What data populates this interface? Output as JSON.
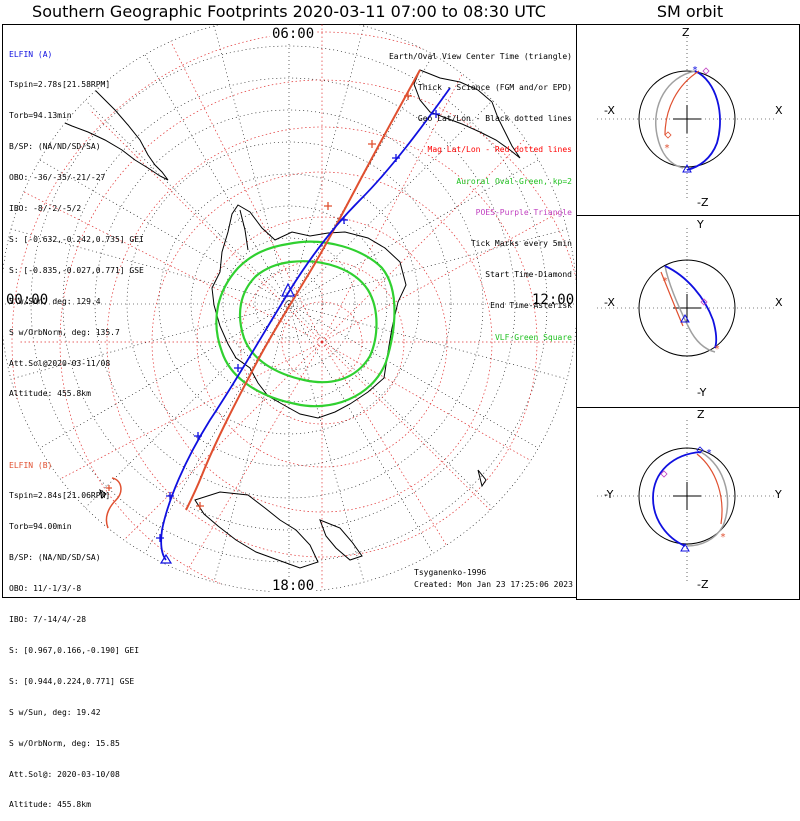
{
  "title": "Southern Geographic Footprints 2020-03-11 07:00 to 08:30 UTC",
  "orbit_title": "SM orbit",
  "hour_labels": {
    "top": "06:00",
    "left": "00:00",
    "right": "12:00",
    "bottom": "18:00"
  },
  "elfin_a": {
    "color": "#1010e0",
    "lines": [
      "ELFIN (A)",
      "Tspin=2.78s[21.58RPM]",
      "Torb=94.13min",
      "B/SP: (NA/ND/SD/SA)",
      "OBO: -36/-35/-21/-27",
      "IBO: -8/-2/-5/2",
      "S: [-0.632,-0.242,0.735] GEI",
      "S: [-0.835,-0.027,0.771] GSE",
      "S w/Sun, deg: 129.4",
      "S w/OrbNorm, deg: 135.7",
      "Att.Sol@2020-03-11/08",
      "Altitude: 455.8km"
    ]
  },
  "elfin_b": {
    "color": "#e05030",
    "lines": [
      "ELFIN (B)",
      "Tspin=2.84s[21.06RPM]",
      "Torb=94.00min",
      "B/SP: (NA/ND/SD/SA)",
      "OBO: 11/-1/3/-8",
      "IBO: 7/-14/4/-28",
      "S: [0.967,0.166,-0.190] GEI",
      "S: [0.944,0.224,0.771] GSE",
      "S w/Sun, deg: 19.42",
      "S w/OrbNorm, deg: 15.85",
      "Att.Sol@: 2020-03-10/08",
      "Altitude: 455.8km"
    ]
  },
  "legend": [
    {
      "text": "Earth/Oval View Center Time (triangle)",
      "color": "#000000"
    },
    {
      "text": "Thick - Science (FGM and/or EPD)",
      "color": "#000000"
    },
    {
      "text": "Geo Lat/Lon - Black dotted lines",
      "color": "#000000"
    },
    {
      "text": "Mag Lat/Lon - Red dotted lines",
      "color": "#ff0000"
    },
    {
      "text": "Auroral Oval-Green, kp=2",
      "color": "#20c020"
    },
    {
      "text": "POES-Purple Triangle",
      "color": "#c040c0"
    },
    {
      "text": "Tick Marks every 5min",
      "color": "#000000"
    },
    {
      "text": "Start Time-Diamond",
      "color": "#000000"
    },
    {
      "text": "End Time-Asterisk",
      "color": "#000000"
    },
    {
      "text": "VLF-Green Square",
      "color": "#20c020"
    }
  ],
  "credits": {
    "model": "Tsyganenko-1996",
    "created": "Created: Mon Jan 23 17:25:06 2023"
  },
  "orbit_panels": [
    {
      "top": "Z",
      "bottom": "-Z",
      "left": "-X",
      "right": "X"
    },
    {
      "top": "Y",
      "bottom": "-Y",
      "left": "-X",
      "right": "X"
    },
    {
      "top": "Z",
      "bottom": "-Z",
      "left": "-Y",
      "right": "Y"
    }
  ],
  "colors": {
    "elfin_a": "#1010e0",
    "elfin_b": "#e05030",
    "oval": "#30d030",
    "mag_grid": "#e03030",
    "orbit_gray": "#a0a0a0"
  }
}
